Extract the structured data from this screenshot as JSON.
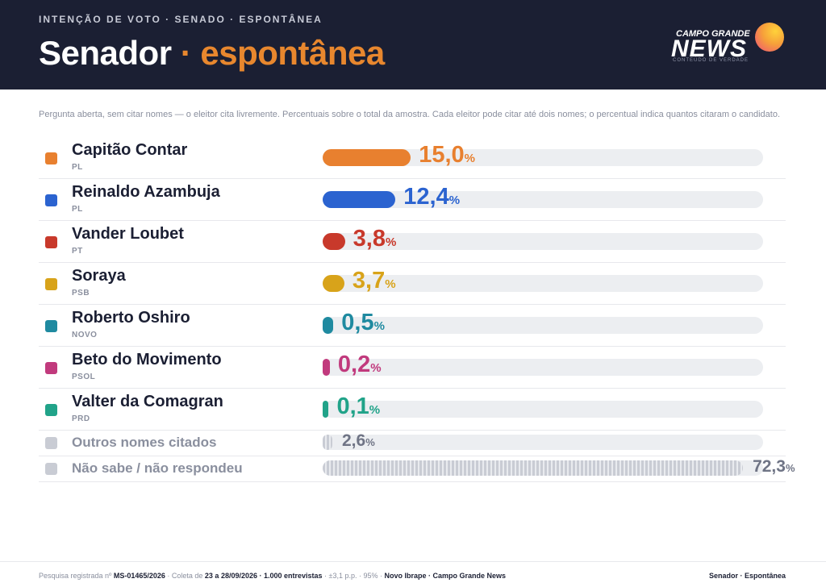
{
  "header": {
    "kicker": "INTENÇÃO DE VOTO · SENADO · ESPONTÂNEA",
    "title_main": "Senador",
    "title_sep": " · ",
    "title_accent": "espontânea",
    "logo_top": "CAMPO GRANDE",
    "logo_main": "NEWS",
    "logo_sub": "CONTEÚDO DE VERDADE"
  },
  "note": "Pergunta aberta, sem citar nomes — o eleitor cita livremente. Percentuais sobre o total da amostra. Cada eleitor pode citar até dois nomes; o percentual indica quantos citaram o candidato.",
  "chart_data": {
    "type": "bar",
    "orientation": "horizontal",
    "xlim": [
      0,
      75
    ],
    "unit": "%",
    "candidates": [
      {
        "name": "Capitão Contar",
        "party": "PL",
        "value": 15.0,
        "label": "15,0",
        "color": "#e8802f"
      },
      {
        "name": "Reinaldo Azambuja",
        "party": "PL",
        "value": 12.4,
        "label": "12,4",
        "color": "#2b63d0"
      },
      {
        "name": "Vander Loubet",
        "party": "PT",
        "value": 3.8,
        "label": "3,8",
        "color": "#c8392b"
      },
      {
        "name": "Soraya",
        "party": "PSB",
        "value": 3.7,
        "label": "3,7",
        "color": "#d8a31a"
      },
      {
        "name": "Roberto Oshiro",
        "party": "NOVO",
        "value": 0.5,
        "label": "0,5",
        "color": "#1f8aa0"
      },
      {
        "name": "Beto do Movimento",
        "party": "PSOL",
        "value": 0.2,
        "label": "0,2",
        "color": "#c13a7d"
      },
      {
        "name": "Valter da Comagran",
        "party": "PRD",
        "value": 0.1,
        "label": "0,1",
        "color": "#21a389"
      }
    ],
    "others": [
      {
        "name": "Outros nomes citados",
        "value": 2.6,
        "label": "2,6"
      },
      {
        "name": "Não sabe / não respondeu",
        "value": 72.3,
        "label": "72,3"
      }
    ]
  },
  "footer": {
    "reg_label": "Pesquisa registrada nº ",
    "reg_value": "MS-01465/2026",
    "coleta_label": " · Coleta de ",
    "coleta_value": "23 a 28/09/2026 · 1.000 entrevistas",
    "margin_text": " · ±3,1 p.p. · 95% · ",
    "source_value": "Novo Ibrape · Campo Grande News",
    "right": "Senador · Espontânea"
  }
}
